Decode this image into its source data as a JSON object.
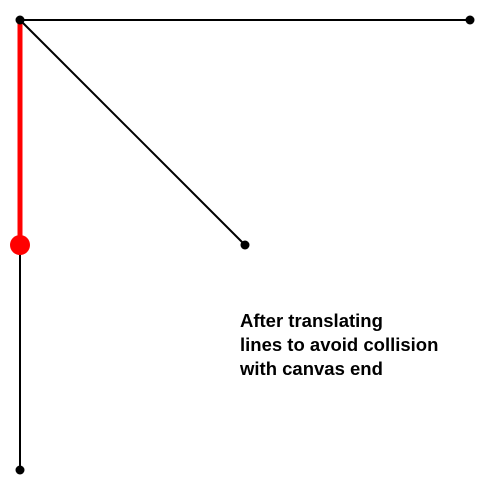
{
  "caption": {
    "lines": [
      "After translating",
      "lines to avoid collision",
      "with canvas end"
    ]
  },
  "colors": {
    "background": "#ffffff",
    "line": "#000000",
    "highlight": "#ff0000"
  }
}
